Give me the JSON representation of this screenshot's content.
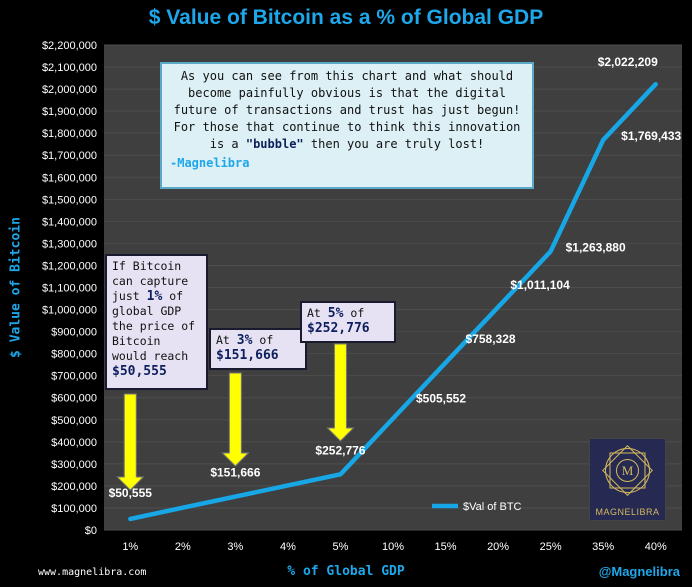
{
  "chart_data": {
    "type": "line",
    "title": "$ Value of Bitcoin as a % of Global GDP",
    "xlabel": "% of Global GDP",
    "ylabel": "$ Value of Bitcoin",
    "categories": [
      "1%",
      "2%",
      "3%",
      "4%",
      "5%",
      "10%",
      "15%",
      "20%",
      "25%",
      "35%",
      "40%"
    ],
    "ylim": [
      0,
      2200000
    ],
    "ytick_step": 100000,
    "series": [
      {
        "name": "$Val of BTC",
        "color": "#17a6e6",
        "values": [
          50555,
          101110,
          151666,
          202221,
          252776,
          505552,
          758328,
          1011104,
          1263880,
          1769433,
          2022209
        ]
      }
    ],
    "point_labels": [
      {
        "index": 0,
        "text": "$50,555"
      },
      {
        "index": 2,
        "text": "$151,666"
      },
      {
        "index": 4,
        "text": "$252,776"
      },
      {
        "index": 5,
        "text": "$505,552"
      },
      {
        "index": 6,
        "text": "$758,328"
      },
      {
        "index": 7,
        "text": "$1,011,104"
      },
      {
        "index": 8,
        "text": "$1,263,880"
      },
      {
        "index": 9,
        "text": "$1,769,433"
      },
      {
        "index": 10,
        "text": "$2,022,209"
      }
    ],
    "legend": "bottom-right"
  },
  "callouts": {
    "one_pct": {
      "pre": "If Bitcoin can capture just",
      "pct": "1%",
      "mid": "of global GDP the price of Bitcoin would reach",
      "value": "$50,555"
    },
    "three_pct": {
      "pre": "At",
      "pct": "3%",
      "mid": "of",
      "value": "$151,666"
    },
    "five_pct": {
      "pre": "At",
      "pct": "5%",
      "mid": "of",
      "value": "$252,776"
    }
  },
  "note": {
    "text_before": "As you can see from this chart and what should become painfully obvious is that the digital future of transactions and trust has just begun! For those that continue to think this innovation is a",
    "bubble": "\"bubble\"",
    "text_after": "then you are truly lost!",
    "signature": "-Magnelibra"
  },
  "footer": {
    "website": "www.magnelibra.com",
    "handle": "@Magnelibra"
  },
  "logo": {
    "text": "MAGNELIBRA",
    "mark": "M"
  },
  "colors": {
    "plot_bg": "#3f3f3f",
    "line": "#17a6e6",
    "arrow": "#ffff00",
    "accent": "#1ea7ea"
  }
}
